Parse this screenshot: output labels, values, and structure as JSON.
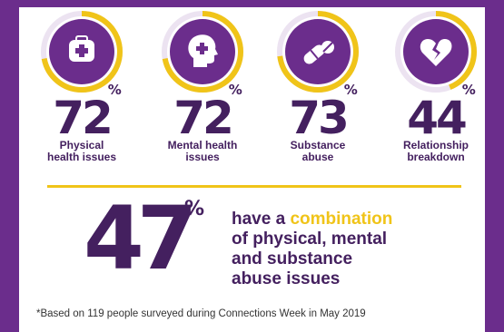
{
  "stats": [
    {
      "value": "72",
      "unit": "%",
      "label_line1": "Physical",
      "label_line2": "health issues",
      "icon": "first-aid-icon",
      "fill": 0.72
    },
    {
      "value": "72",
      "unit": "%",
      "label_line1": "Mental health",
      "label_line2": "issues",
      "icon": "head-cross-icon",
      "fill": 0.72
    },
    {
      "value": "73",
      "unit": "%",
      "label_line1": "Substance",
      "label_line2": "abuse",
      "icon": "pills-icon",
      "fill": 0.73
    },
    {
      "value": "44",
      "unit": "%",
      "label_line1": "Relationship",
      "label_line2": "breakdown",
      "icon": "broken-heart-icon",
      "fill": 0.44
    }
  ],
  "combination": {
    "value": "47",
    "unit": "%",
    "text_before": "have a ",
    "highlight": "combination",
    "line2": "of physical, mental",
    "line3": "and substance",
    "line4": "abuse issues"
  },
  "footnote": "*Based on 119 people surveyed during Connections Week in May 2019",
  "colors": {
    "purple": "#6b2d8c",
    "dark_purple": "#44205f",
    "gold": "#f0c419",
    "ring_track": "#ece3f1"
  }
}
